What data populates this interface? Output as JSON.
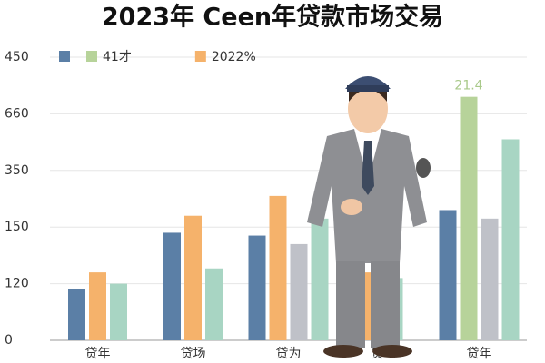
{
  "chart_data": {
    "type": "bar",
    "title": "2023年 Ceen年贷款市场交易",
    "categories": [
      "贷年",
      "贷场",
      "贷为",
      "贷场",
      "贷年"
    ],
    "series": [
      {
        "color": "#5b7fa6",
        "values": [
          0.9,
          1.9,
          1.85,
          null,
          2.3
        ],
        "in_legend": true
      },
      {
        "name": "41才",
        "color": "#b7d39a",
        "values": [
          null,
          null,
          null,
          null,
          4.3
        ],
        "in_legend": true
      },
      {
        "name": "2022%",
        "color": "#f5b26b",
        "values": [
          1.2,
          2.2,
          2.55,
          1.2,
          null
        ],
        "in_legend": true
      },
      {
        "color": "#bfc1c8",
        "values": [
          null,
          null,
          1.7,
          null,
          2.15
        ],
        "in_legend": false
      },
      {
        "color": "#a8d5c3",
        "values": [
          1.0,
          1.27,
          2.15,
          1.1,
          3.55
        ],
        "in_legend": false
      }
    ],
    "annotation": "21.4",
    "ylim": [
      0,
      5
    ],
    "yticks": [
      {
        "value": 0,
        "label": "0"
      },
      {
        "value": 1,
        "label": "120"
      },
      {
        "value": 2,
        "label": "150"
      },
      {
        "value": 3,
        "label": "350"
      },
      {
        "value": 4,
        "label": "660"
      },
      {
        "value": 5,
        "label": "450"
      }
    ],
    "grid": true
  }
}
